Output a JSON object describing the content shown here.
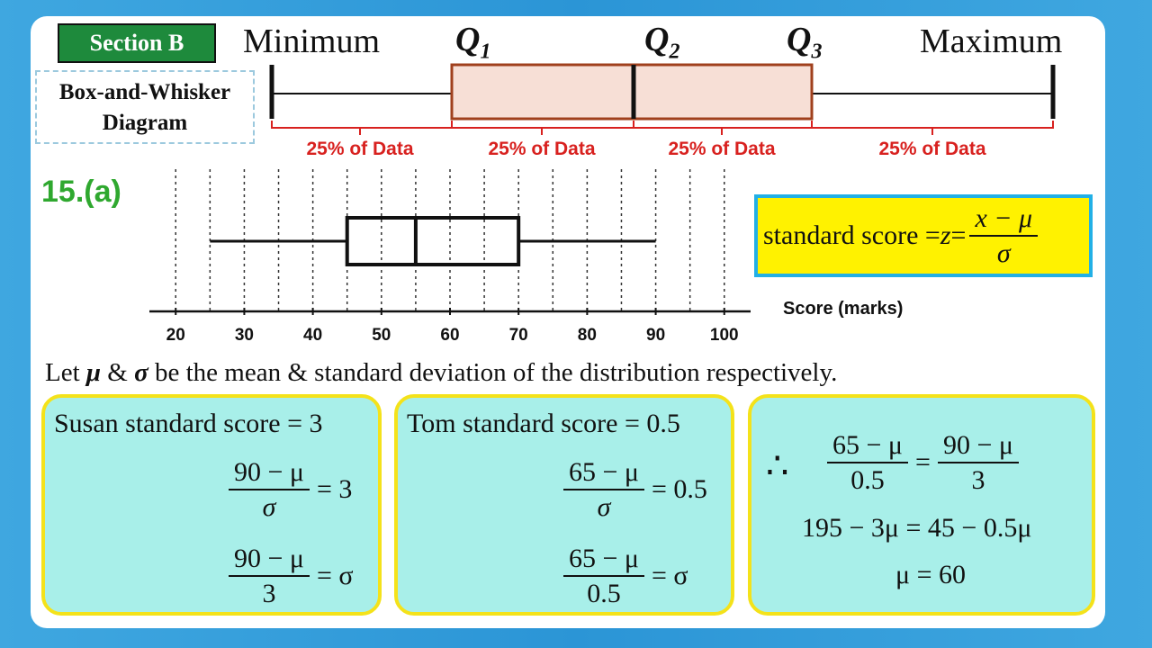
{
  "section": "Section B",
  "diagram_title": [
    "Box-and-Whisker",
    "Diagram"
  ],
  "labels": {
    "minimum": "Minimum",
    "q1": "Q",
    "q1_sub": "1",
    "q2": "Q",
    "q2_sub": "2",
    "q3": "Q",
    "q3_sub": "3",
    "maximum": "Maximum"
  },
  "quarter_labels": [
    "25% of Data",
    "25% of Data",
    "25% of Data",
    "25% of Data"
  ],
  "question": "15.(a)",
  "formula": {
    "lhs": "standard score = ",
    "z": "z",
    "eq": " = ",
    "num": "x − μ",
    "den": "σ"
  },
  "chart_data": {
    "type": "boxplot",
    "xlabel": "Score (marks)",
    "ticks": [
      20,
      30,
      40,
      50,
      60,
      70,
      80,
      90,
      100
    ],
    "xlim": [
      18,
      102
    ],
    "minimum": 25,
    "q1": 45,
    "median": 55,
    "q3": 70,
    "maximum": 90,
    "grid": "dotted-vertical"
  },
  "let_sentence": {
    "pre": "Let ",
    "mu": "μ",
    "amp1": " & ",
    "sigma": "σ",
    "post": " be the mean & standard deviation of the distribution respectively."
  },
  "susan": {
    "title": "Susan standard score = 3",
    "f1_num": "90 − μ",
    "f1_den": "σ",
    "f1_rhs": "= 3",
    "f2_num": "90 − μ",
    "f2_den": "3",
    "f2_rhs": "= σ"
  },
  "tom": {
    "title": "Tom standard score = 0.5",
    "f1_num": "65 − μ",
    "f1_den": "σ",
    "f1_rhs": "= 0.5",
    "f2_num": "65 − μ",
    "f2_den": "0.5",
    "f2_rhs": "= σ"
  },
  "solve": {
    "therefore": "∴",
    "l_num": "65 − μ",
    "l_den": "0.5",
    "eq": "=",
    "r_num": "90 − μ",
    "r_den": "3",
    "line2": "195 − 3μ = 45 − 0.5μ",
    "line3": "μ = 60"
  }
}
